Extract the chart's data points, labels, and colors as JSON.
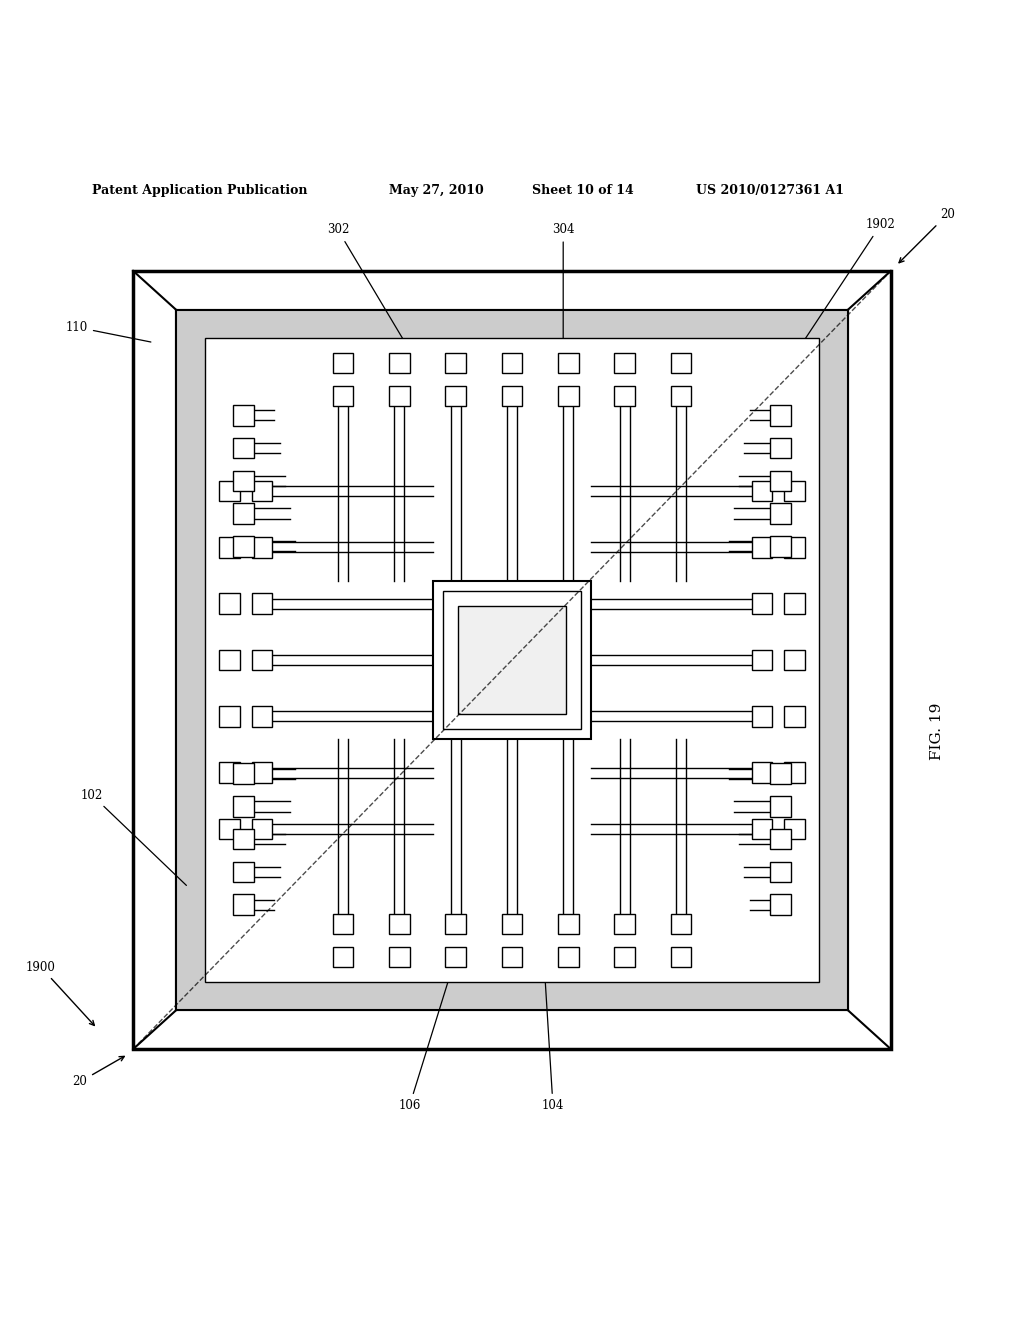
{
  "bg_color": "#ffffff",
  "line_color": "#000000",
  "gray_fill": "#c8c8c8",
  "header_text": "Patent Application Publication",
  "header_date": "May 27, 2010",
  "header_sheet": "Sheet 10 of 14",
  "header_patent": "US 2010/0127361 A1",
  "fig_label": "FIG. 19"
}
